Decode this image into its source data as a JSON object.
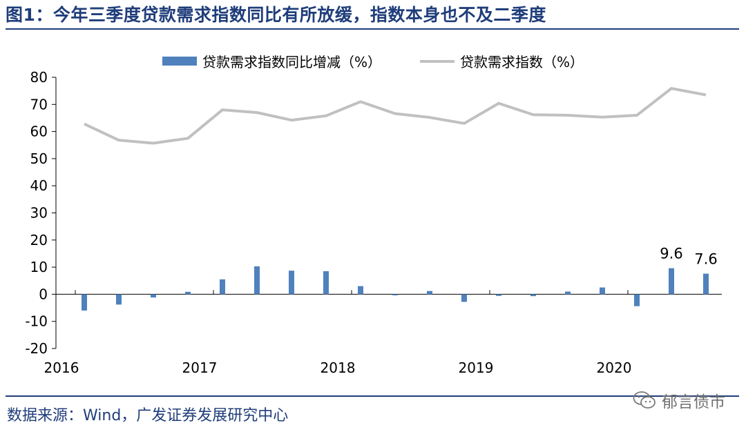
{
  "title": "图1：今年三季度贷款需求指数同比有所放缓，指数本身也不及二季度",
  "source": "数据来源：Wind，广发证券发展研究中心",
  "watermark": "郁言债市",
  "colors": {
    "bar": "#4f81bd",
    "line": "#c0c0c0",
    "rule": "#1f3d7a"
  },
  "chart_data": {
    "type": "bar",
    "x": [
      "2016Q1",
      "2016Q2",
      "2016Q3",
      "2016Q4",
      "2017Q1",
      "2017Q2",
      "2017Q3",
      "2017Q4",
      "2018Q1",
      "2018Q2",
      "2018Q3",
      "2018Q4",
      "2019Q1",
      "2019Q2",
      "2019Q3",
      "2019Q4",
      "2020Q1",
      "2020Q2",
      "2020Q3"
    ],
    "x_tick_labels": [
      "2016",
      "2017",
      "2018",
      "2019",
      "2020"
    ],
    "x_tick_index": [
      0,
      4,
      8,
      12,
      16
    ],
    "series": [
      {
        "name": "贷款需求指数同比增减（%）",
        "type": "bar",
        "values": [
          -6.0,
          -3.8,
          -1.2,
          0.9,
          5.5,
          10.3,
          8.7,
          8.5,
          3.0,
          -0.4,
          1.2,
          -2.8,
          -0.6,
          -0.7,
          1.0,
          2.5,
          -4.4,
          9.6,
          7.6
        ]
      },
      {
        "name": "贷款需求指数（%）",
        "type": "line",
        "values": [
          62.8,
          56.8,
          55.7,
          57.5,
          68.0,
          67.0,
          64.2,
          65.8,
          71.0,
          66.6,
          65.2,
          63.0,
          70.4,
          66.2,
          66.0,
          65.3,
          66.0,
          75.9,
          73.5
        ]
      }
    ],
    "data_labels": [
      {
        "index": 17,
        "text": "9.6"
      },
      {
        "index": 18,
        "text": "7.6"
      }
    ],
    "ylim": [
      -20,
      80
    ],
    "yticks": [
      -20,
      -10,
      0,
      10,
      20,
      30,
      40,
      50,
      60,
      70,
      80
    ],
    "grid": false,
    "legend_position": "top-center"
  }
}
